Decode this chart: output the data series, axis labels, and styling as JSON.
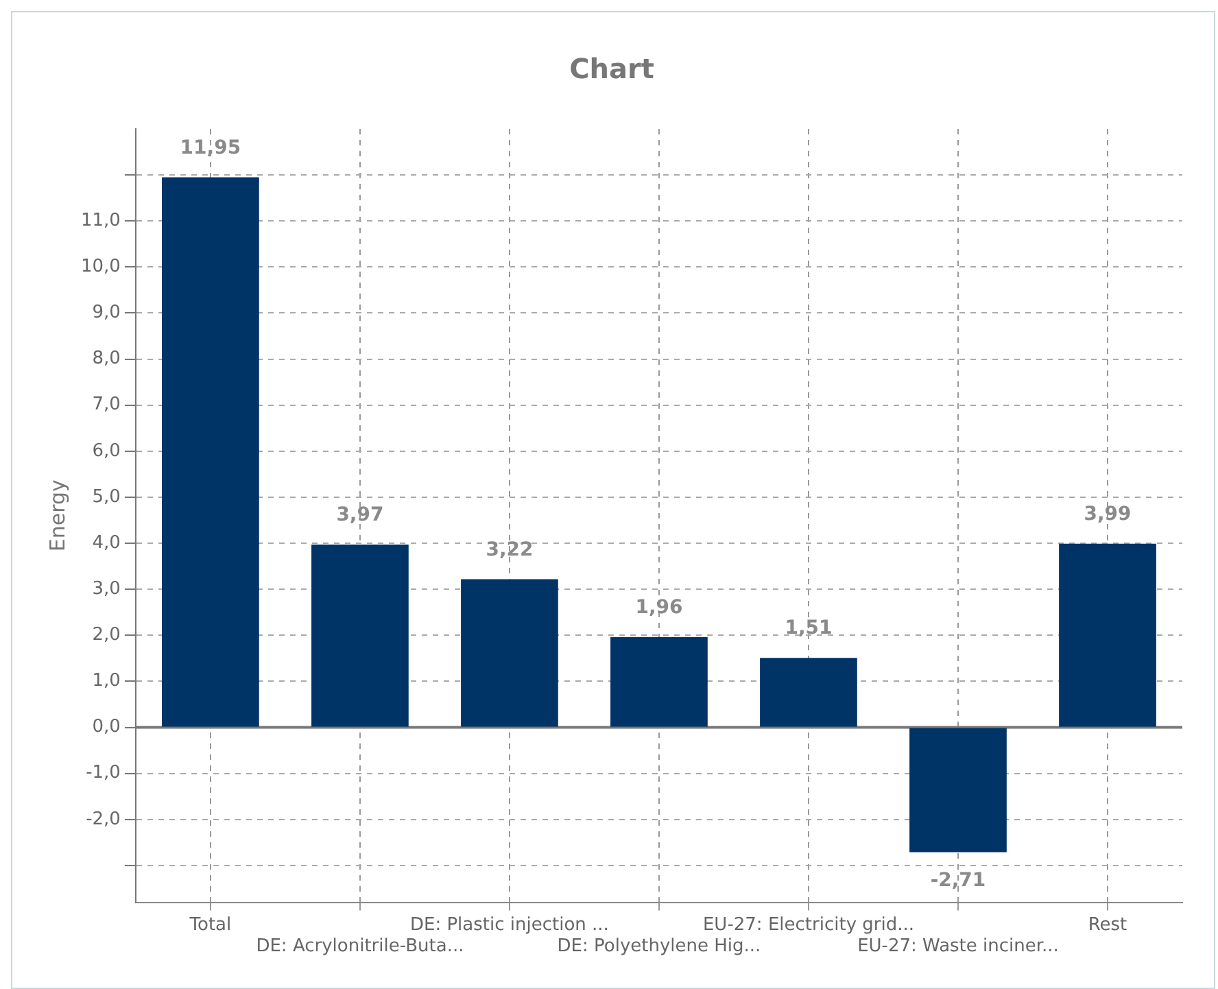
{
  "chart_data": {
    "type": "bar",
    "title": "Chart",
    "ylabel": "Energy",
    "categories": [
      "Total",
      "DE: Acrylonitrile-Buta...",
      "DE: Plastic injection ...",
      "DE: Polyethylene Hig...",
      "EU-27: Electricity grid...",
      "EU-27: Waste inciner...",
      "Rest"
    ],
    "values": [
      11.95,
      3.97,
      3.22,
      1.96,
      1.51,
      -2.71,
      3.99
    ],
    "value_labels": [
      "11,95",
      "3,97",
      "3,22",
      "1,96",
      "1,51",
      "-2,71",
      "3,99"
    ],
    "color": "#003366",
    "ylim": [
      -3.8,
      13
    ],
    "yticks": [
      {
        "value": -3,
        "label": null
      },
      {
        "value": -2,
        "label": "-2,0"
      },
      {
        "value": -1,
        "label": "-1,0"
      },
      {
        "value": 0,
        "label": "0,0"
      },
      {
        "value": 1,
        "label": "1,0"
      },
      {
        "value": 2,
        "label": "2,0"
      },
      {
        "value": 3,
        "label": "3,0"
      },
      {
        "value": 4,
        "label": "4,0"
      },
      {
        "value": 5,
        "label": "5,0"
      },
      {
        "value": 6,
        "label": "6,0"
      },
      {
        "value": 7,
        "label": "7,0"
      },
      {
        "value": 8,
        "label": "8,0"
      },
      {
        "value": 9,
        "label": "9,0"
      },
      {
        "value": 10,
        "label": "10,0"
      },
      {
        "value": 11,
        "label": "11,0"
      },
      {
        "value": 12,
        "label": null
      }
    ],
    "grid": true,
    "ref_lines": [
      {
        "axis": "y",
        "value": 0,
        "color": "#777777",
        "line_style": "solid"
      }
    ]
  }
}
